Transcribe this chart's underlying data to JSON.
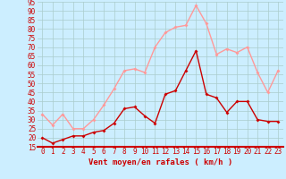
{
  "xlabel": "Vent moyen/en rafales ( km/h )",
  "x": [
    0,
    1,
    2,
    3,
    4,
    5,
    6,
    7,
    8,
    9,
    10,
    11,
    12,
    13,
    14,
    15,
    16,
    17,
    18,
    19,
    20,
    21,
    22,
    23
  ],
  "wind_avg": [
    20,
    17,
    19,
    21,
    21,
    23,
    24,
    28,
    36,
    37,
    32,
    28,
    44,
    46,
    57,
    68,
    44,
    42,
    34,
    40,
    40,
    30,
    29,
    29
  ],
  "wind_gust": [
    33,
    27,
    33,
    25,
    25,
    30,
    38,
    47,
    57,
    58,
    56,
    70,
    78,
    81,
    82,
    93,
    83,
    66,
    69,
    67,
    70,
    56,
    45,
    57
  ],
  "color_avg": "#cc0000",
  "color_gust": "#ff9999",
  "bg_color": "#cceeff",
  "grid_color": "#aacccc",
  "ylim": [
    15,
    95
  ],
  "yticks": [
    15,
    20,
    25,
    30,
    35,
    40,
    45,
    50,
    55,
    60,
    65,
    70,
    75,
    80,
    85,
    90,
    95
  ],
  "tick_fontsize": 5.5,
  "label_fontsize": 6.5
}
